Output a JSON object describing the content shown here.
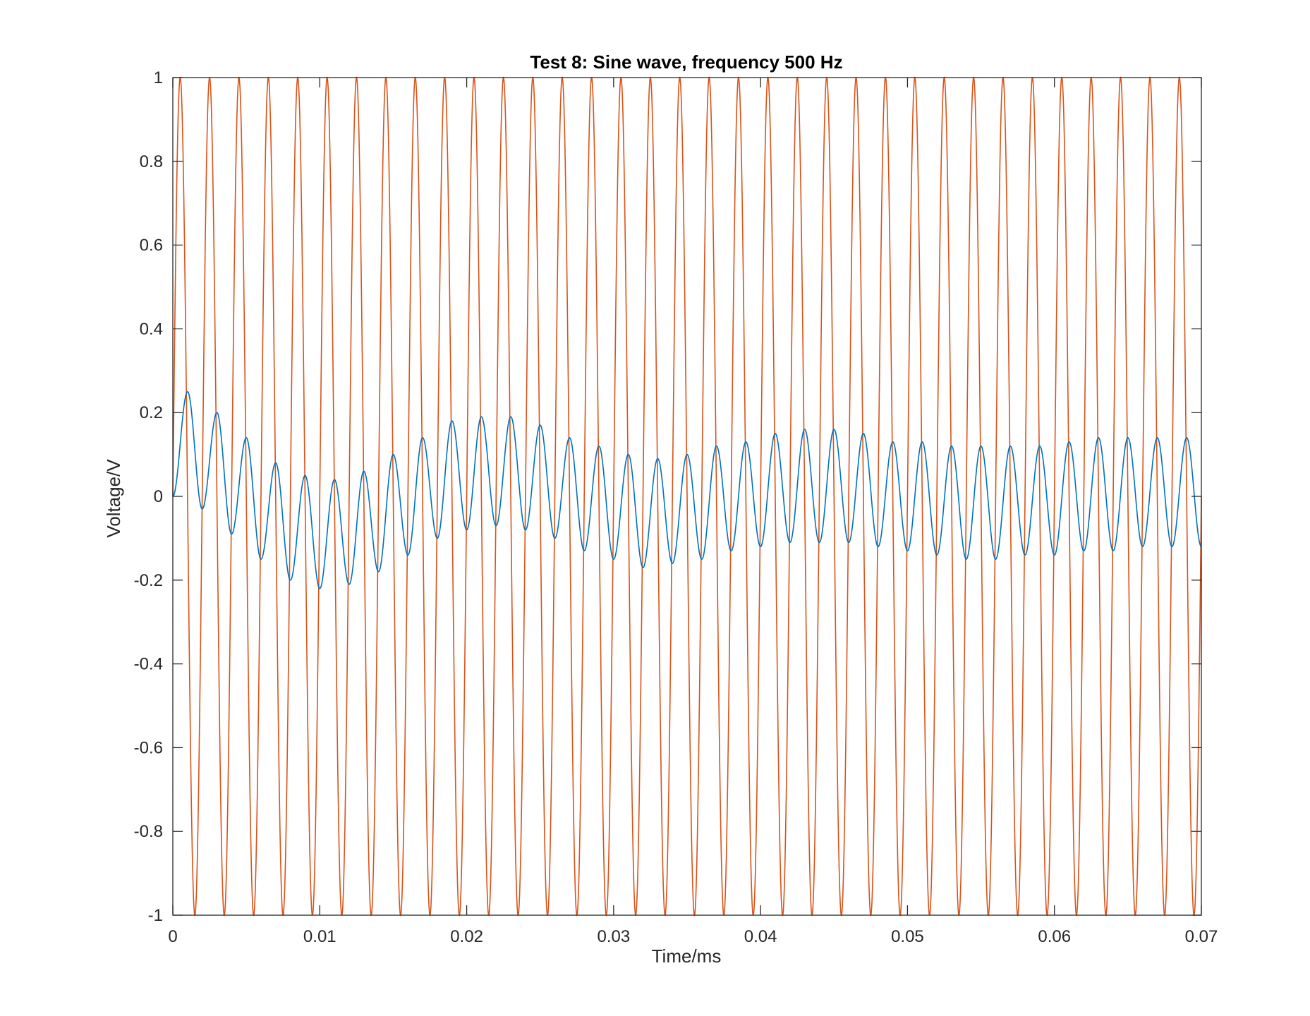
{
  "chart_data": {
    "type": "line",
    "title": "Test 8: Sine wave, frequency 500 Hz",
    "xlabel": "Time/ms",
    "ylabel": "Voltage/V",
    "xlim": [
      0,
      0.07
    ],
    "ylim": [
      -1,
      1
    ],
    "xticks": [
      "0",
      "0.01",
      "0.02",
      "0.03",
      "0.04",
      "0.05",
      "0.06",
      "0.07"
    ],
    "yticks": [
      "-1",
      "-0.8",
      "-0.6",
      "-0.4",
      "-0.2",
      "0",
      "0.2",
      "0.4",
      "0.6",
      "0.8",
      "1"
    ],
    "grid": false,
    "legend": "none",
    "series": [
      {
        "color": "#D95319",
        "form": "sine",
        "amplitude": 1.0,
        "period": 0.002,
        "phase_start": 0,
        "peaks_at": 0.0005
      },
      {
        "color": "#0072BD",
        "form": "sine with slowly varying offset",
        "period": 0.002,
        "first_peak": {
          "x": 0.001,
          "y": 0.25
        },
        "peaks": [
          [
            0.001,
            0.25
          ],
          [
            0.003,
            0.2
          ],
          [
            0.005,
            0.14
          ],
          [
            0.007,
            0.08
          ],
          [
            0.009,
            0.05
          ],
          [
            0.011,
            0.04
          ],
          [
            0.013,
            0.06
          ],
          [
            0.015,
            0.1
          ],
          [
            0.017,
            0.14
          ],
          [
            0.019,
            0.18
          ],
          [
            0.021,
            0.19
          ],
          [
            0.023,
            0.19
          ],
          [
            0.025,
            0.17
          ],
          [
            0.027,
            0.14
          ],
          [
            0.029,
            0.12
          ],
          [
            0.031,
            0.1
          ],
          [
            0.033,
            0.09
          ],
          [
            0.035,
            0.1
          ],
          [
            0.037,
            0.12
          ],
          [
            0.039,
            0.13
          ],
          [
            0.041,
            0.15
          ],
          [
            0.043,
            0.16
          ],
          [
            0.045,
            0.16
          ],
          [
            0.047,
            0.15
          ],
          [
            0.049,
            0.13
          ],
          [
            0.051,
            0.13
          ],
          [
            0.053,
            0.12
          ],
          [
            0.055,
            0.12
          ],
          [
            0.057,
            0.12
          ],
          [
            0.059,
            0.12
          ],
          [
            0.061,
            0.13
          ],
          [
            0.063,
            0.14
          ],
          [
            0.065,
            0.14
          ],
          [
            0.067,
            0.14
          ],
          [
            0.069,
            0.14
          ]
        ],
        "troughs": [
          [
            0.002,
            -0.03
          ],
          [
            0.004,
            -0.09
          ],
          [
            0.006,
            -0.15
          ],
          [
            0.008,
            -0.2
          ],
          [
            0.01,
            -0.22
          ],
          [
            0.012,
            -0.21
          ],
          [
            0.014,
            -0.18
          ],
          [
            0.016,
            -0.14
          ],
          [
            0.018,
            -0.1
          ],
          [
            0.02,
            -0.08
          ],
          [
            0.022,
            -0.07
          ],
          [
            0.024,
            -0.08
          ],
          [
            0.026,
            -0.1
          ],
          [
            0.028,
            -0.13
          ],
          [
            0.03,
            -0.15
          ],
          [
            0.032,
            -0.17
          ],
          [
            0.034,
            -0.16
          ],
          [
            0.036,
            -0.15
          ],
          [
            0.038,
            -0.13
          ],
          [
            0.04,
            -0.12
          ],
          [
            0.042,
            -0.11
          ],
          [
            0.044,
            -0.11
          ],
          [
            0.046,
            -0.11
          ],
          [
            0.048,
            -0.12
          ],
          [
            0.05,
            -0.13
          ],
          [
            0.052,
            -0.14
          ],
          [
            0.054,
            -0.15
          ],
          [
            0.056,
            -0.15
          ],
          [
            0.058,
            -0.14
          ],
          [
            0.06,
            -0.14
          ],
          [
            0.062,
            -0.13
          ],
          [
            0.064,
            -0.13
          ],
          [
            0.066,
            -0.12
          ],
          [
            0.068,
            -0.12
          ],
          [
            0.07,
            -0.12
          ]
        ]
      }
    ]
  }
}
